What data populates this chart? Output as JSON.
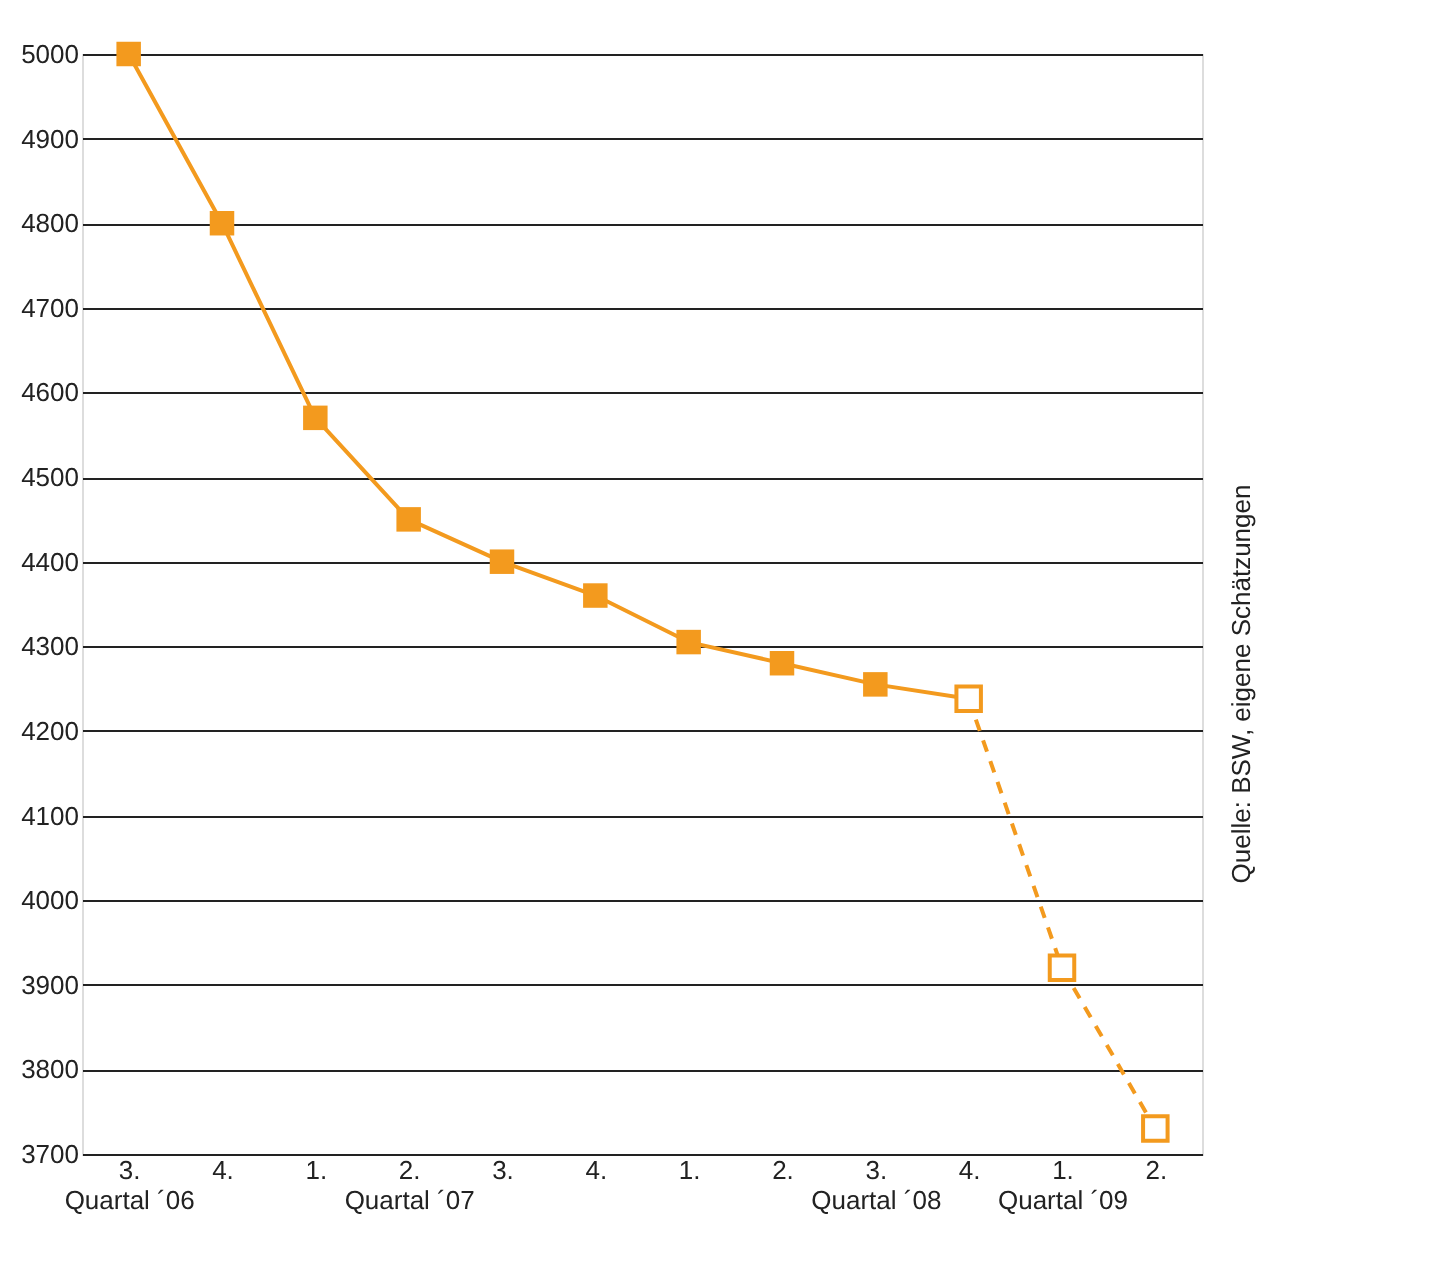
{
  "chart_data": {
    "type": "line",
    "categories": [
      "3.\nQuartal ´06",
      "4.",
      "1.",
      "2.\nQuartal ´07",
      "3.",
      "4.",
      "1.",
      "2.",
      "3.\nQuartal ´08",
      "4.",
      "1.\nQuartal ´09",
      "2."
    ],
    "series": [
      {
        "color": "#f39a1e",
        "values": [
          5000,
          4800,
          4570,
          4450,
          4400,
          4360,
          4305,
          4280,
          4255,
          4238,
          null,
          null
        ],
        "line_style": "solid",
        "marker": "square"
      },
      {
        "color": "#f39a1e",
        "values": [
          null,
          null,
          null,
          null,
          null,
          null,
          null,
          null,
          null,
          4238,
          3920,
          3730
        ],
        "line_style": "dashed",
        "marker": "square"
      }
    ],
    "ylim": [
      3700,
      5000
    ],
    "yticks": [
      3700,
      3800,
      3900,
      4000,
      4100,
      4200,
      4300,
      4400,
      4500,
      4600,
      4700,
      4800,
      4900,
      5000
    ],
    "grid": "y",
    "annotations": [
      "Quelle: BSW, eigene Schätzungen"
    ]
  }
}
